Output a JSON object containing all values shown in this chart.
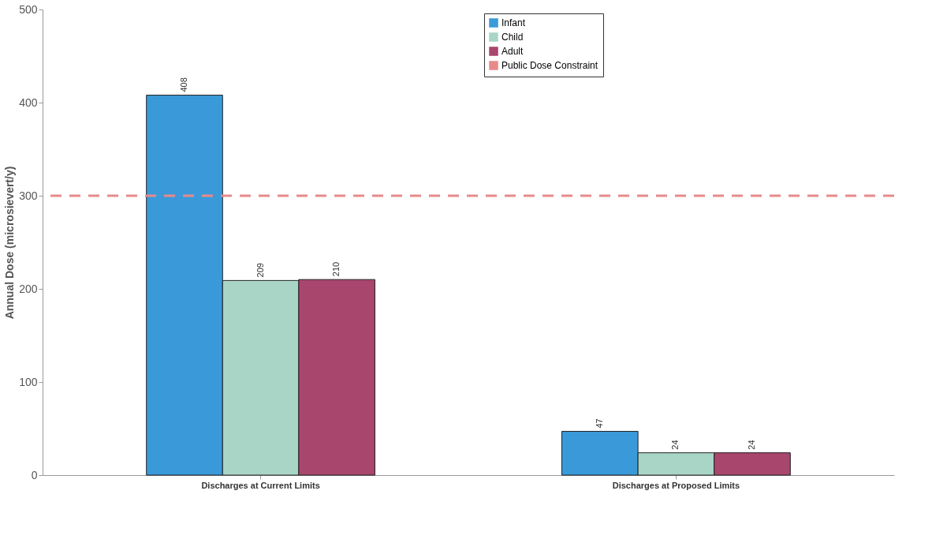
{
  "chart_data": {
    "type": "bar",
    "ylabel": "Annual Dose (microsievert/y)",
    "categories": [
      "Discharges at Current Limits",
      "Discharges at Proposed Limits"
    ],
    "series": [
      {
        "name": "Infant",
        "color": "#3a9ad9",
        "values": [
          408,
          47
        ]
      },
      {
        "name": "Child",
        "color": "#a8d5c5",
        "values": [
          209,
          24
        ]
      },
      {
        "name": "Adult",
        "color": "#a8466e",
        "values": [
          210,
          24
        ]
      }
    ],
    "ylim": [
      0,
      500
    ],
    "yticks": [
      0,
      100,
      200,
      300,
      400,
      500
    ],
    "ref_lines": [
      {
        "axis": "y",
        "value": 300,
        "label": "Public Dose Constraint",
        "color": "#e88a8a",
        "line_style": "dashed"
      }
    ],
    "data_labels": true,
    "grid": false,
    "legend": "top right"
  }
}
